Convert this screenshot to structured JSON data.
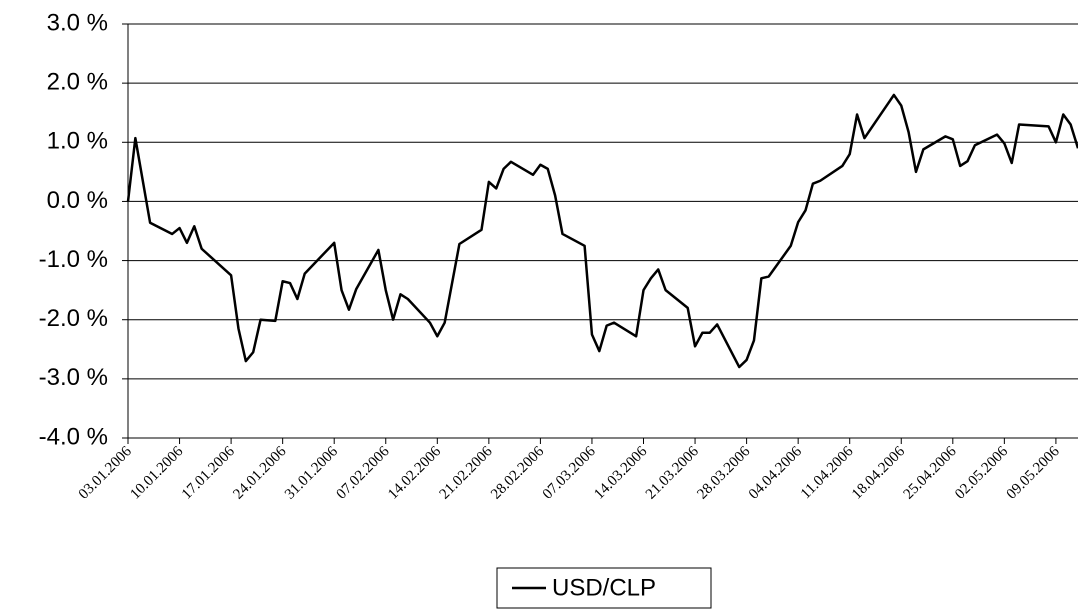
{
  "chart_data": {
    "type": "line",
    "x": [
      "03.01.2006",
      "04.01.2006",
      "06.01.2006",
      "09.01.2006",
      "10.01.2006",
      "11.01.2006",
      "12.01.2006",
      "13.01.2006",
      "17.01.2006",
      "18.01.2006",
      "19.01.2006",
      "20.01.2006",
      "21.01.2006",
      "23.01.2006",
      "24.01.2006",
      "25.01.2006",
      "26.01.2006",
      "27.01.2006",
      "31.01.2006",
      "01.02.2006",
      "02.02.2006",
      "03.02.2006",
      "06.02.2006",
      "07.02.2006",
      "08.02.2006",
      "09.02.2006",
      "10.02.2006",
      "13.02.2006",
      "14.02.2006",
      "15.02.2006",
      "17.02.2006",
      "20.02.2006",
      "21.02.2006",
      "22.02.2006",
      "23.02.2006",
      "24.02.2006",
      "27.02.2006",
      "28.02.2006",
      "01.03.2006",
      "02.03.2006",
      "03.03.2006",
      "06.03.2006",
      "07.03.2006",
      "08.03.2006",
      "09.03.2006",
      "10.03.2006",
      "13.03.2006",
      "14.03.2006",
      "15.03.2006",
      "16.03.2006",
      "17.03.2006",
      "20.03.2006",
      "21.03.2006",
      "22.03.2006",
      "23.03.2006",
      "24.03.2006",
      "27.03.2006",
      "28.03.2006",
      "29.03.2006",
      "30.03.2006",
      "31.03.2006",
      "03.04.2006",
      "04.04.2006",
      "05.04.2006",
      "06.04.2006",
      "07.04.2006",
      "10.04.2006",
      "11.04.2006",
      "12.04.2006",
      "13.04.2006",
      "17.04.2006",
      "18.04.2006",
      "19.04.2006",
      "20.04.2006",
      "21.04.2006",
      "24.04.2006",
      "25.04.2006",
      "26.04.2006",
      "27.04.2006",
      "28.04.2006",
      "01.05.2006",
      "02.05.2006",
      "03.05.2006",
      "04.05.2006",
      "08.05.2006",
      "09.05.2006",
      "10.05.2006",
      "11.05.2006",
      "12.05.2006"
    ],
    "series": [
      {
        "name": "USD/CLP",
        "color": "#000000",
        "values": [
          0.0,
          1.07,
          -0.36,
          -0.55,
          -0.45,
          -0.7,
          -0.42,
          -0.8,
          -1.25,
          -2.15,
          -2.7,
          -2.55,
          -2.0,
          -2.02,
          -1.35,
          -1.38,
          -1.65,
          -1.22,
          -0.7,
          -1.5,
          -1.83,
          -1.48,
          -0.82,
          -1.5,
          -2.0,
          -1.57,
          -1.65,
          -2.05,
          -2.28,
          -2.05,
          -0.72,
          -0.48,
          0.33,
          0.22,
          0.55,
          0.67,
          0.45,
          0.62,
          0.55,
          0.1,
          -0.55,
          -0.75,
          -2.25,
          -2.53,
          -2.1,
          -2.05,
          -2.28,
          -1.5,
          -1.3,
          -1.15,
          -1.5,
          -1.8,
          -2.45,
          -2.22,
          -2.22,
          -2.08,
          -2.8,
          -2.68,
          -2.35,
          -1.3,
          -1.27,
          -0.75,
          -0.35,
          -0.15,
          0.3,
          0.35,
          0.6,
          0.8,
          1.47,
          1.07,
          1.8,
          1.62,
          1.17,
          0.5,
          0.88,
          1.1,
          1.05,
          0.6,
          0.68,
          0.95,
          1.13,
          0.98,
          0.65,
          1.3,
          1.27,
          1.0,
          1.47,
          1.3,
          0.9
        ]
      }
    ],
    "xlim": [
      "03.01.2006",
      "12.05.2006"
    ],
    "xticks": [
      "03.01.2006",
      "10.01.2006",
      "17.01.2006",
      "24.01.2006",
      "31.01.2006",
      "07.02.2006",
      "14.02.2006",
      "21.02.2006",
      "28.02.2006",
      "07.03.2006",
      "14.03.2006",
      "21.03.2006",
      "28.03.2006",
      "04.04.2006",
      "11.04.2006",
      "18.04.2006",
      "25.04.2006",
      "02.05.2006",
      "09.05.2006"
    ],
    "ylim": [
      -4,
      3
    ],
    "yticks": [
      {
        "value": -4,
        "label": "-4.0 %"
      },
      {
        "value": -3,
        "label": "-3.0 %"
      },
      {
        "value": -2,
        "label": "-2.0 %"
      },
      {
        "value": -1,
        "label": "-1.0 %"
      },
      {
        "value": 0,
        "label": "0.0 %"
      },
      {
        "value": 1,
        "label": "1.0 %"
      },
      {
        "value": 2,
        "label": "2.0 %"
      },
      {
        "value": 3,
        "label": "3.0 %"
      }
    ],
    "grid": true,
    "legend": "bottom"
  }
}
